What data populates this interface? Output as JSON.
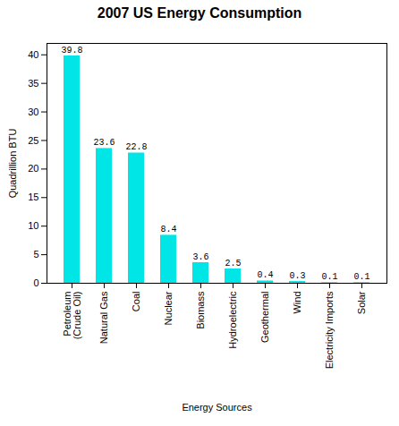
{
  "chart_data": {
    "type": "bar",
    "title": "2007 US Energy Consumption",
    "xlabel": "Energy Sources",
    "ylabel": "Quadrillion BTU",
    "categories": [
      "Petroleum\n(Crude Oil)",
      "Natural Gas",
      "Coal",
      "Nuclear",
      "Biomass",
      "Hydroelectric",
      "Geothermal",
      "Wind",
      "Electricity Imports",
      "Solar"
    ],
    "values": [
      39.8,
      23.6,
      22.8,
      8.4,
      3.6,
      2.5,
      0.4,
      0.3,
      0.1,
      0.1
    ],
    "color": "#00E5E5",
    "ylim": [
      0,
      42
    ],
    "yticks": [
      0,
      5,
      10,
      15,
      20,
      25,
      30,
      35,
      40
    ],
    "grid": false,
    "data_labels": true
  }
}
